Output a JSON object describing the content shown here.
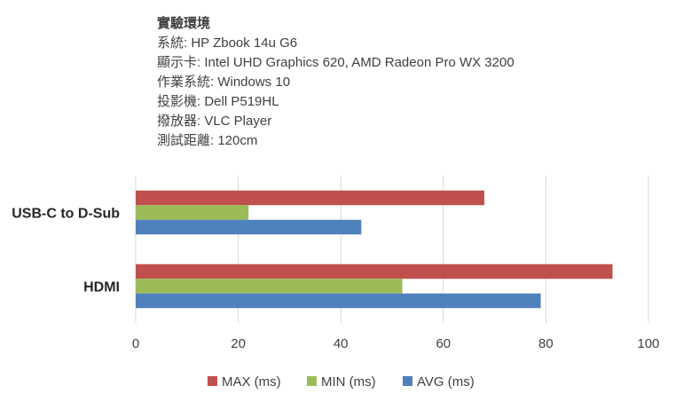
{
  "info": {
    "heading": "實驗環境",
    "lines": [
      "系統: HP Zbook 14u G6",
      "顯示卡: Intel UHD Graphics 620, AMD Radeon Pro WX 3200",
      "作業系統: Windows 10",
      "投影機: Dell P519HL",
      "撥放器: VLC Player",
      "測試距離: 120cm"
    ]
  },
  "chart_data": {
    "type": "bar",
    "orientation": "horizontal",
    "categories": [
      "USB-C to D-Sub",
      "HDMI"
    ],
    "series": [
      {
        "name": "MAX (ms)",
        "color": "#c0504d",
        "values": [
          68,
          93
        ]
      },
      {
        "name": "MIN (ms)",
        "color": "#9bbb59",
        "values": [
          22,
          52
        ]
      },
      {
        "name": "AVG (ms)",
        "color": "#4f81bd",
        "values": [
          44,
          79
        ]
      }
    ],
    "xlim": [
      0,
      100
    ],
    "xticks": [
      "0",
      "20",
      "40",
      "60",
      "80",
      "100"
    ],
    "grid": true,
    "legend_position": "bottom"
  }
}
